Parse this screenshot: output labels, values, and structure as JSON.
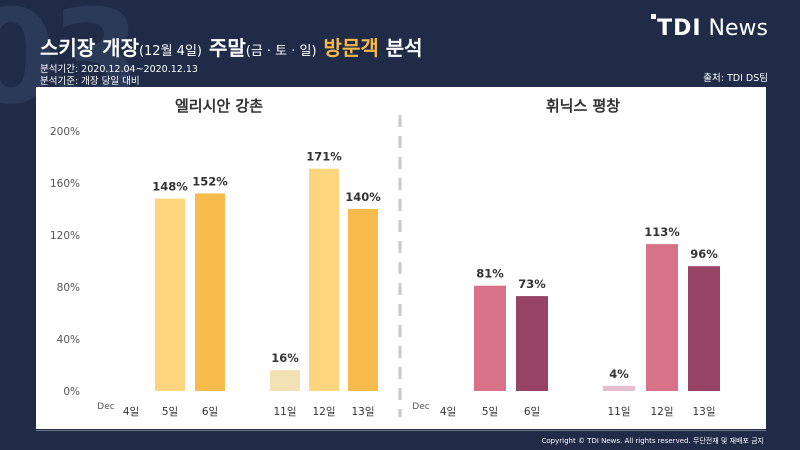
{
  "header": {
    "title_main": "스키장 개장",
    "title_paren": "(12월 4일)",
    "title_mid": " 주말",
    "title_days": "(금 · 토 · 일)",
    "title_hl": " 방문객",
    "title_end": " 분석",
    "period": "분석기간: 2020.12.04~2020.12.13",
    "basis": "분석기준: 개장 당일 대비",
    "source": "출처: TDI DS팀"
  },
  "logo": {
    "brand": "TDI",
    "suffix": "News"
  },
  "footer": {
    "copyright": "Copyright © TDI News. All rights reserved. 무단전재 및 재배포 금지"
  },
  "colors": {
    "elysian": [
      "#f3e1b6",
      "#fcd57e",
      "#f9bc4c"
    ],
    "phoenix": [
      "#e8bdd0",
      "#d87288",
      "#974363"
    ],
    "divider": "#c8c8c8"
  },
  "chart_data": [
    {
      "type": "bar",
      "title": "엘리시안 강촌",
      "xlabel": "Dec",
      "categories": [
        "4일",
        "5일",
        "6일",
        "11일",
        "12일",
        "13일"
      ],
      "values": [
        null,
        148,
        152,
        16,
        171,
        140
      ],
      "labels": [
        "",
        "148%",
        "152%",
        "16%",
        "171%",
        "140%"
      ],
      "yticks": [
        "200%",
        "160%",
        "120%",
        "80%",
        "40%",
        "0%"
      ],
      "ylim": [
        0,
        200
      ],
      "grid": false
    },
    {
      "type": "bar",
      "title": "휘닉스 평창",
      "xlabel": "Dec",
      "categories": [
        "4일",
        "5일",
        "6일",
        "11일",
        "12일",
        "13일"
      ],
      "values": [
        null,
        81,
        73,
        4,
        113,
        96
      ],
      "labels": [
        "",
        "81%",
        "73%",
        "4%",
        "113%",
        "96%"
      ],
      "ylim": [
        0,
        200
      ],
      "grid": false
    }
  ]
}
